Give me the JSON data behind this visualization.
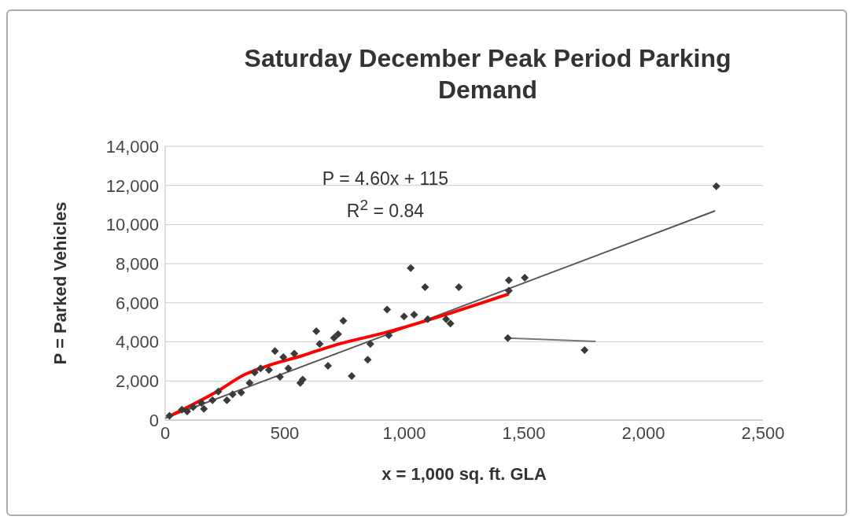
{
  "chart_data": {
    "type": "scatter",
    "title": "Saturday December Peak Period Parking Demand",
    "xlabel": "x = 1,000 sq. ft. GLA",
    "ylabel": "P = Parked Vehicles",
    "annotations": [
      "P = 4.60x + 115",
      "R$^{2}$ = 0.84"
    ],
    "xlim": [
      0,
      2500
    ],
    "xticks": [
      0,
      500,
      {
        "value": 1000,
        "label": "1,000"
      },
      {
        "value": 1500,
        "label": "1,500"
      },
      {
        "value": 2000,
        "label": "2,000"
      },
      {
        "value": 2500,
        "label": "2,500"
      }
    ],
    "ylim": [
      0,
      14000
    ],
    "yticks": [
      0,
      {
        "value": 2000,
        "label": "2,000"
      },
      {
        "value": 4000,
        "label": "4,000"
      },
      {
        "value": 6000,
        "label": "6,000"
      },
      {
        "value": 8000,
        "label": "8,000"
      },
      {
        "value": 10000,
        "label": "10,000"
      },
      {
        "value": 12000,
        "label": "12,000"
      },
      {
        "value": 14000,
        "label": "14,000"
      }
    ],
    "grid": "y",
    "legend": false,
    "marker": "diamond",
    "series": [
      {
        "color": "#3a3a3a",
        "x": [
          18,
          70,
          92,
          117,
          152,
          162,
          198,
          222,
          258,
          282,
          318,
          353,
          374,
          399,
          434,
          459,
          480,
          494,
          515,
          540,
          565,
          575,
          632,
          646,
          681,
          706,
          723,
          745,
          780,
          847,
          858,
          928,
          935,
          999,
          1027,
          1041,
          1087,
          1098,
          1175,
          1193,
          1228,
          1433,
          1437,
          1437,
          1504,
          1754,
          2305
        ],
        "values": [
          220,
          530,
          440,
          660,
          880,
          570,
          1020,
          1460,
          1020,
          1320,
          1410,
          1900,
          2430,
          2650,
          2560,
          3530,
          2210,
          3220,
          2650,
          3400,
          1900,
          2070,
          4550,
          3890,
          2780,
          4200,
          4400,
          5080,
          2250,
          3090,
          3890,
          5650,
          4330,
          5300,
          7770,
          5390,
          6800,
          5160,
          5160,
          4940,
          6800,
          4190,
          7150,
          6620,
          7280,
          3580,
          11960
        ]
      },
      {
        "type": "line",
        "color": "#555555",
        "marker": "none",
        "x": [
          0,
          2300
        ],
        "values": [
          100,
          10700
        ]
      },
      {
        "type": "line",
        "color": "#777777",
        "marker": "none",
        "x": [
          1433,
          1800
        ],
        "values": [
          4190,
          4020
        ]
      },
      {
        "type": "line",
        "color": "#ff0000",
        "marker": "none",
        "x": [
          21,
          222,
          328,
          434,
          575,
          700,
          928,
          1200,
          1437
        ],
        "values": [
          220,
          1500,
          2300,
          2800,
          3300,
          3800,
          4500,
          5500,
          6450
        ]
      }
    ]
  }
}
